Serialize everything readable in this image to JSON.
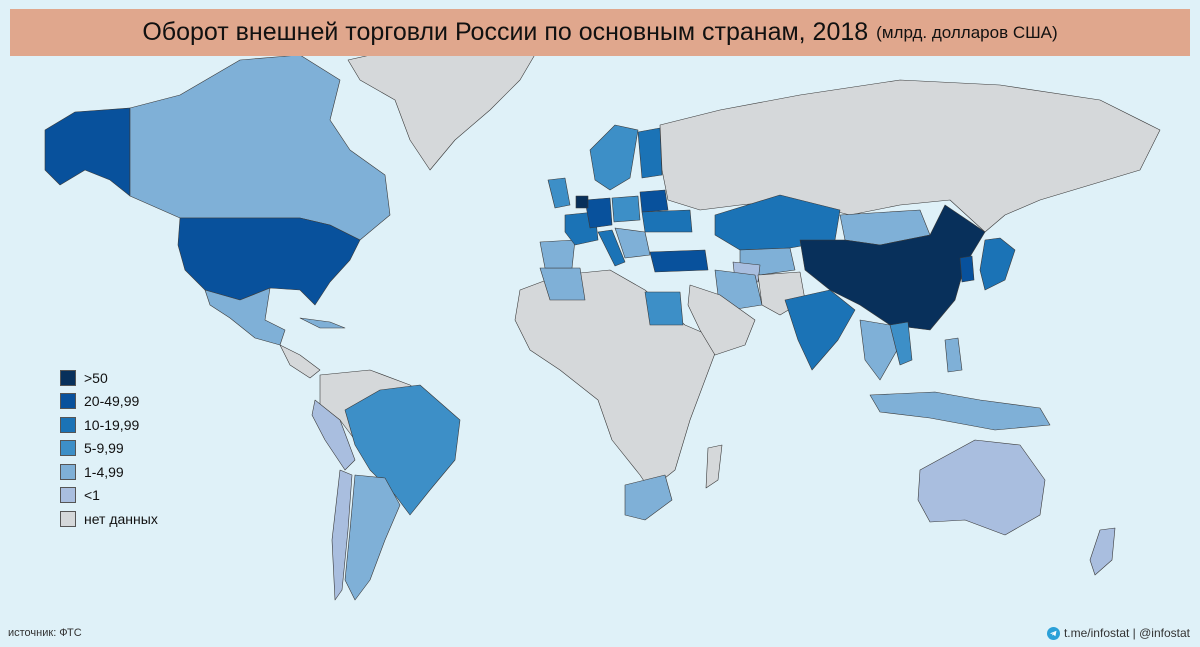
{
  "title": {
    "main": "Оборот внешней торговли России по основным странам, 2018",
    "unit": "(млрд. долларов США)"
  },
  "legend": [
    {
      "label": ">50",
      "color": "#08305b"
    },
    {
      "label": "20-49,99",
      "color": "#08519c"
    },
    {
      "label": "10-19,99",
      "color": "#1b73b6"
    },
    {
      "label": "5-9,99",
      "color": "#3d8fc7"
    },
    {
      "label": "1-4,99",
      "color": "#7fb0d7"
    },
    {
      "label": "<1",
      "color": "#a9bedf"
    },
    {
      "label": "нет данных",
      "color": "#d5d8da"
    }
  ],
  "source": "источник: ФТС",
  "credit": "t.me/infostat | @infostat",
  "colors": {
    "ocean": "#dff1f8",
    "nodata": "#d5d8da",
    "banner": "#e0a78d",
    "border": "#3a3a3a"
  }
}
